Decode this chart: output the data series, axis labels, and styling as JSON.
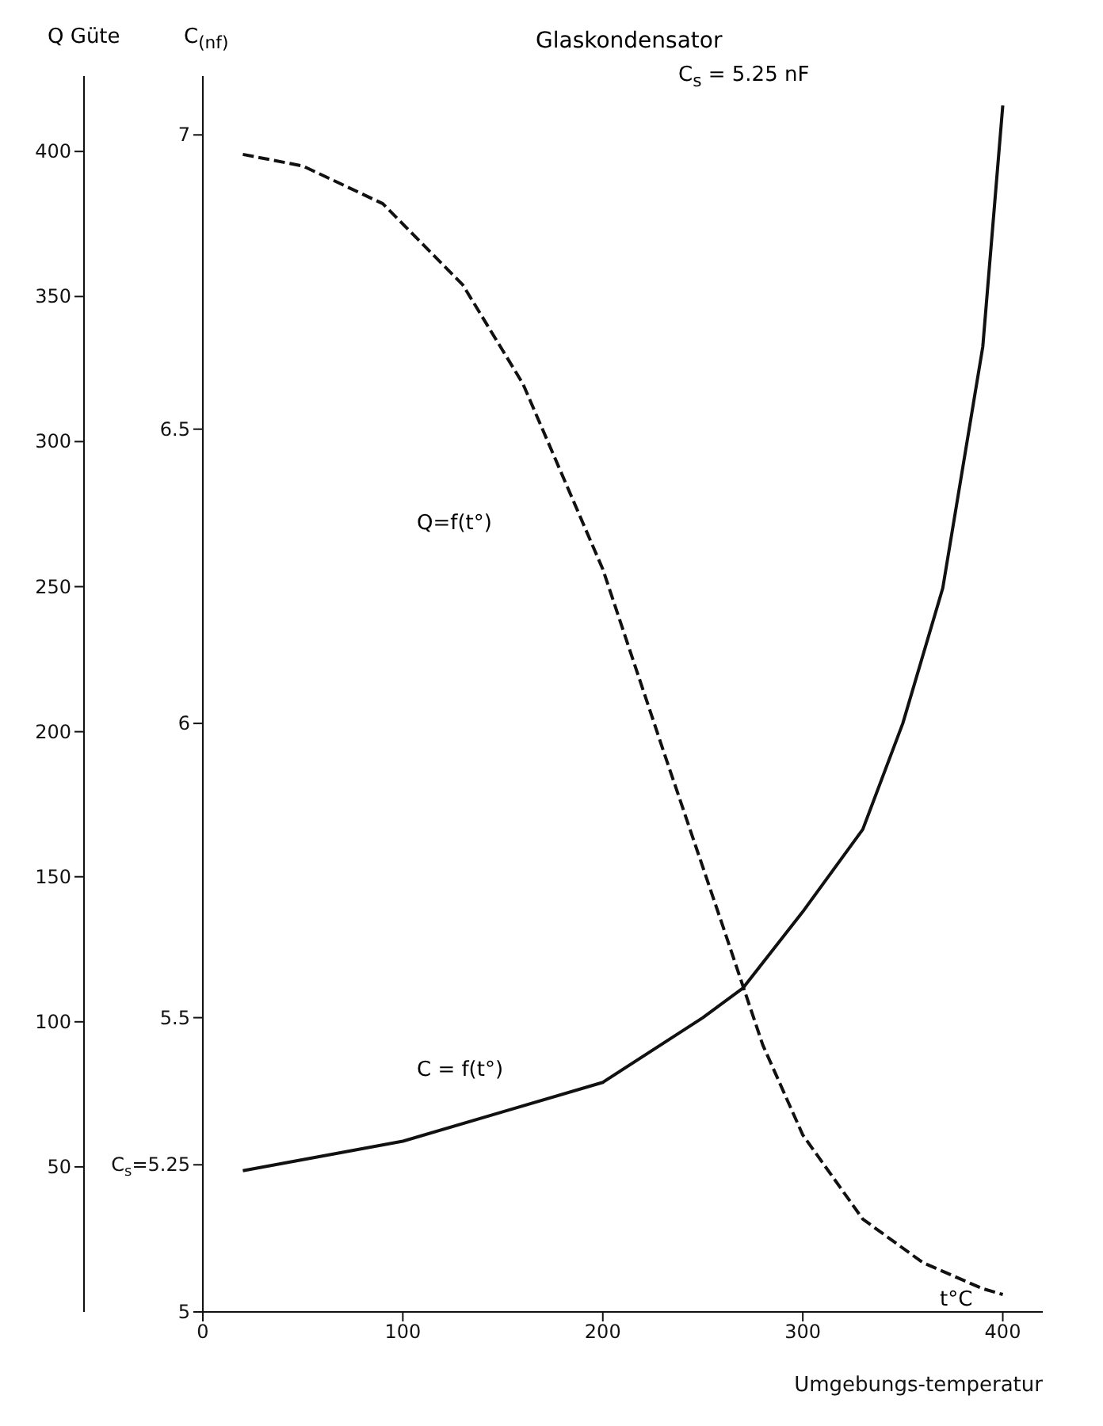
{
  "chart_data": {
    "type": "line",
    "title": "Glaskondensator",
    "subtitle": "C$_{s}$ = 5.25 nF",
    "xlabel": "Umgebungs-temperatur",
    "ylabel": "C$_{(nf)}$",
    "y2label": "Q Güte",
    "xlim": [
      0,
      420
    ],
    "xticks": [
      0,
      100,
      200,
      300,
      400
    ],
    "ylim": [
      5,
      7.1
    ],
    "yticks": [
      5,
      {
        "value": 5.25,
        "label": "C$_{s}$=5.25"
      },
      5.5,
      6,
      6.5,
      7
    ],
    "y2lim": [
      0,
      426
    ],
    "y2ticks": [
      50,
      100,
      150,
      200,
      250,
      300,
      350,
      400
    ],
    "marker": "none",
    "series": [
      {
        "color": "#111111",
        "line_style": "solid",
        "x": [
          20,
          100,
          150,
          200,
          250,
          270,
          300,
          330,
          350,
          370,
          390,
          400
        ],
        "values": [
          5.24,
          5.29,
          5.34,
          5.39,
          5.5,
          5.55,
          5.68,
          5.82,
          6.0,
          6.23,
          6.64,
          7.05
        ]
      },
      {
        "color": "#111111",
        "line_style": "dashed",
        "axis": "y2",
        "x": [
          20,
          50,
          90,
          130,
          160,
          200,
          230,
          260,
          280,
          300,
          330,
          360,
          390,
          400
        ],
        "values": [
          399,
          395,
          382,
          354,
          320,
          256,
          194,
          133,
          92,
          61,
          32,
          17,
          8,
          6
        ]
      }
    ],
    "annotations": [
      "Q=f(t°)",
      "C = f(t°)",
      "t°C"
    ]
  }
}
